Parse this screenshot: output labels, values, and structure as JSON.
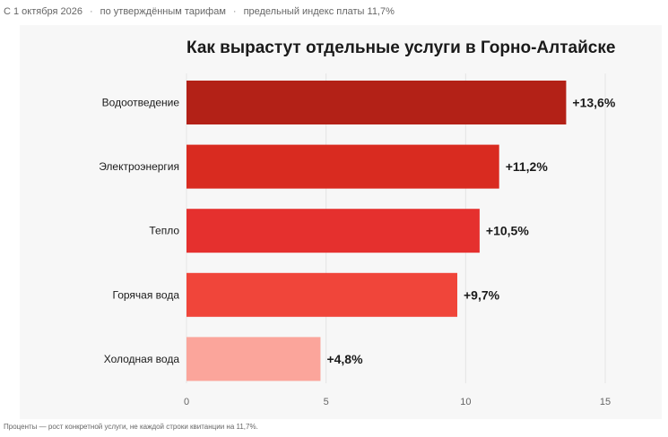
{
  "subtitle": {
    "date": "С 1 октября 2026",
    "separator": "·",
    "tariff": "по утверждённым тарифам",
    "index": "предельный индекс платы 11,7%"
  },
  "footnote": "Проценты — рост конкретной услуги, не каждой строки квитанции на 11,7%.",
  "chart_data": {
    "type": "bar",
    "orientation": "horizontal",
    "title": "Как вырастут отдельные услуги в Горно-Алтайске",
    "xlabel": "",
    "ylabel": "",
    "xlim": [
      0,
      15
    ],
    "x_ticks": [
      0,
      5,
      10,
      15
    ],
    "grid": true,
    "categories": [
      "Водоотведение",
      "Электроэнергия",
      "Тепло",
      "Горячая вода",
      "Холодная вода"
    ],
    "values": [
      13.6,
      11.2,
      10.5,
      9.7,
      4.8
    ],
    "value_labels": [
      "+13,6%",
      "+11,2%",
      "+10,5%",
      "+9,7%",
      "+4,8%"
    ],
    "colors": [
      "#b32117",
      "#d92b20",
      "#e5302e",
      "#f0453a",
      "#fba59b"
    ]
  }
}
